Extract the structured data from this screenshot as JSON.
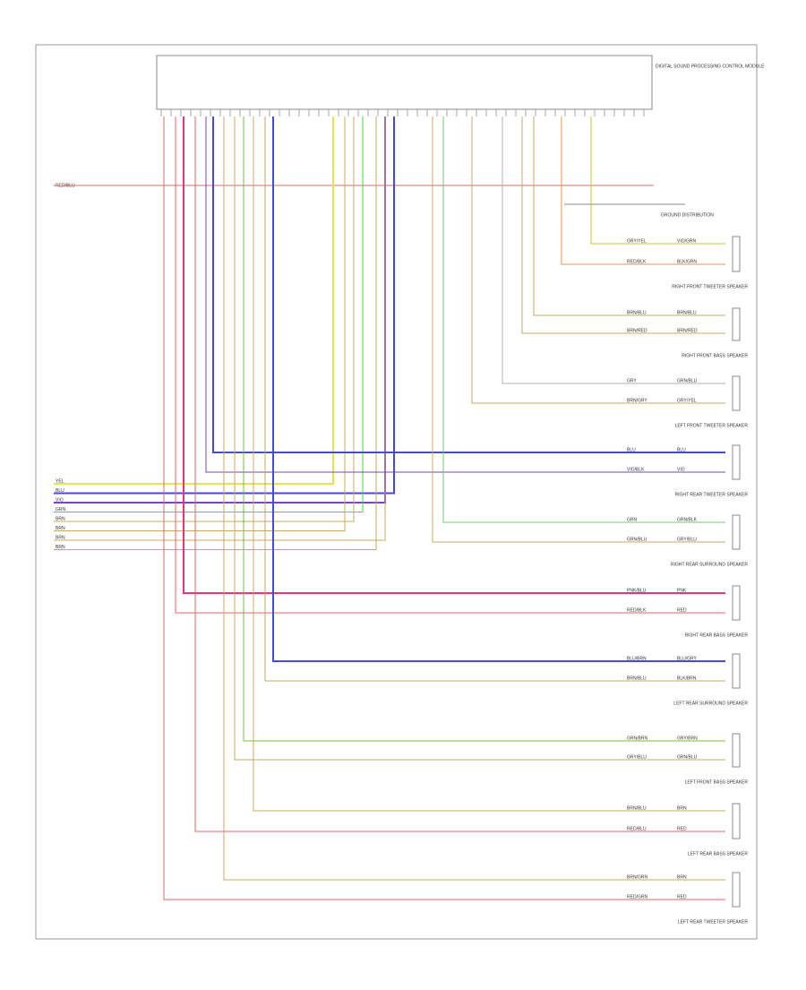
{
  "module": {
    "title": "DIGITAL SOUND PROCESSING CONTROL MODULE"
  },
  "power": {
    "label": "RED/BLU"
  },
  "ground": {
    "label": "GROUND DISTRIBUTION"
  },
  "bus": [
    {
      "label": "YEL",
      "color": "#e6e64a"
    },
    {
      "label": "BLU",
      "color": "#4848e8"
    },
    {
      "label": "VIO",
      "color": "#7a44c8"
    },
    {
      "label": "GRN",
      "color": "#44d844"
    },
    {
      "label": "BRN",
      "color": "#c8a860"
    },
    {
      "label": "BRN",
      "color": "#c8a860"
    },
    {
      "label": "BRN",
      "color": "#c8a860"
    },
    {
      "label": "BRN",
      "color": "#c8a860"
    }
  ],
  "speakers": [
    {
      "label": "RIGHT FRONT TWEETER SPEAKER",
      "wires": [
        {
          "label": "GRY/YEL",
          "end": "VIO/GRN",
          "color": "#c8c830"
        },
        {
          "label": "RED/BLK",
          "end": "BLK/GRN",
          "color": "#f09040"
        }
      ]
    },
    {
      "label": "RIGHT FRONT BASS SPEAKER",
      "wires": [
        {
          "label": "BRN/BLU",
          "end": "BRN/BLU",
          "color": "#c8a860"
        },
        {
          "label": "BRN/RED",
          "end": "BRN/RED",
          "color": "#c8a860"
        }
      ]
    },
    {
      "label": "LEFT FRONT TWEETER SPEAKER",
      "wires": [
        {
          "label": "GRY",
          "end": "GRN/BLU",
          "color": "#b0b0b0"
        },
        {
          "label": "BRN/GRY",
          "end": "GRY/YEL",
          "color": "#c8a860"
        }
      ]
    },
    {
      "label": "RIGHT REAR TWEETER SPEAKER",
      "wires": [
        {
          "label": "BLU",
          "end": "BLU",
          "color": "#4848e8"
        },
        {
          "label": "VIO/BLK",
          "end": "VIO",
          "color": "#7a44c8"
        }
      ]
    },
    {
      "label": "RIGHT REAR SURROUND SPEAKER",
      "wires": [
        {
          "label": "GRN",
          "end": "GRN/BLK",
          "color": "#60d860"
        },
        {
          "label": "GRN/BLU",
          "end": "GRY/BLU",
          "color": "#c8a860"
        }
      ]
    },
    {
      "label": "RIGHT REAR BASS SPEAKER",
      "wires": [
        {
          "label": "PNK/BLU",
          "end": "PNK",
          "color": "#f0307a"
        },
        {
          "label": "RED/BLK",
          "end": "RED",
          "color": "#f06060"
        }
      ]
    },
    {
      "label": "LEFT REAR SURROUND SPEAKER",
      "wires": [
        {
          "label": "BLU/BRN",
          "end": "BLU/GRY",
          "color": "#4848e8"
        },
        {
          "label": "BRN/BLU",
          "end": "BLK/BRN",
          "color": "#c8a860"
        }
      ]
    },
    {
      "label": "LEFT FRONT BASS SPEAKER",
      "wires": [
        {
          "label": "GRN/BRN",
          "end": "GRY/BRN",
          "color": "#70c030"
        },
        {
          "label": "GRY/BLU",
          "end": "GRN/BLU",
          "color": "#c8a860"
        }
      ]
    },
    {
      "label": "LEFT REAR BASS SPEAKER",
      "wires": [
        {
          "label": "BRN/BLU",
          "end": "BRN",
          "color": "#c8a860"
        },
        {
          "label": "RED/BLU",
          "end": "RED",
          "color": "#f06060"
        }
      ]
    },
    {
      "label": "LEFT REAR TWEETER SPEAKER",
      "wires": [
        {
          "label": "BRN/GRN",
          "end": "BRN",
          "color": "#c8a860"
        },
        {
          "label": "RED/GRN",
          "end": "RED",
          "color": "#f06060"
        }
      ]
    }
  ]
}
